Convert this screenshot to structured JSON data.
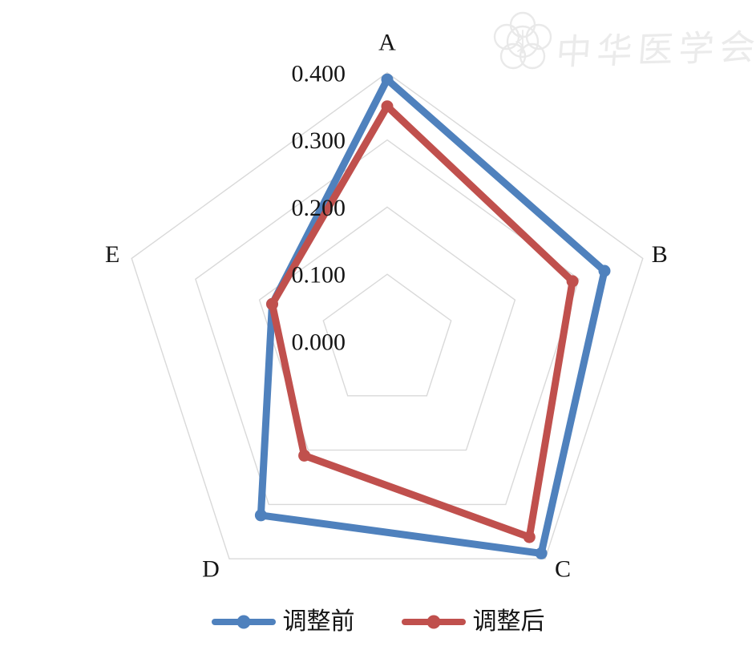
{
  "chart_data": {
    "type": "radar",
    "categories": [
      "A",
      "B",
      "C",
      "D",
      "E"
    ],
    "series": [
      {
        "name": "调整前",
        "color": "#4F81BD",
        "values": [
          0.39,
          0.34,
          0.39,
          0.32,
          0.18
        ]
      },
      {
        "name": "调整后",
        "color": "#C0504D",
        "values": [
          0.35,
          0.29,
          0.36,
          0.21,
          0.18
        ]
      }
    ],
    "axis": {
      "min": 0,
      "max": 0.4,
      "tick_interval": 0.1,
      "ticks": [
        {
          "label": "0.400",
          "value": 0.4
        },
        {
          "label": "0.300",
          "value": 0.3
        },
        {
          "label": "0.200",
          "value": 0.2
        },
        {
          "label": "0.100",
          "value": 0.1
        },
        {
          "label": "0.000",
          "value": 0.0
        }
      ]
    },
    "grid": {
      "shape": "pentagon-rings",
      "color": "#D9D9D9",
      "spokes": false
    },
    "legend": {
      "position": "bottom",
      "entries": [
        "调整前",
        "调整后"
      ]
    },
    "title": ""
  },
  "watermark": {
    "text": "中华医学会"
  },
  "style_colors": {
    "series_before": "#4F81BD",
    "series_after": "#C0504D",
    "gridline": "#D9D9D9",
    "text": "#151515",
    "watermark": "#ebebeb"
  }
}
